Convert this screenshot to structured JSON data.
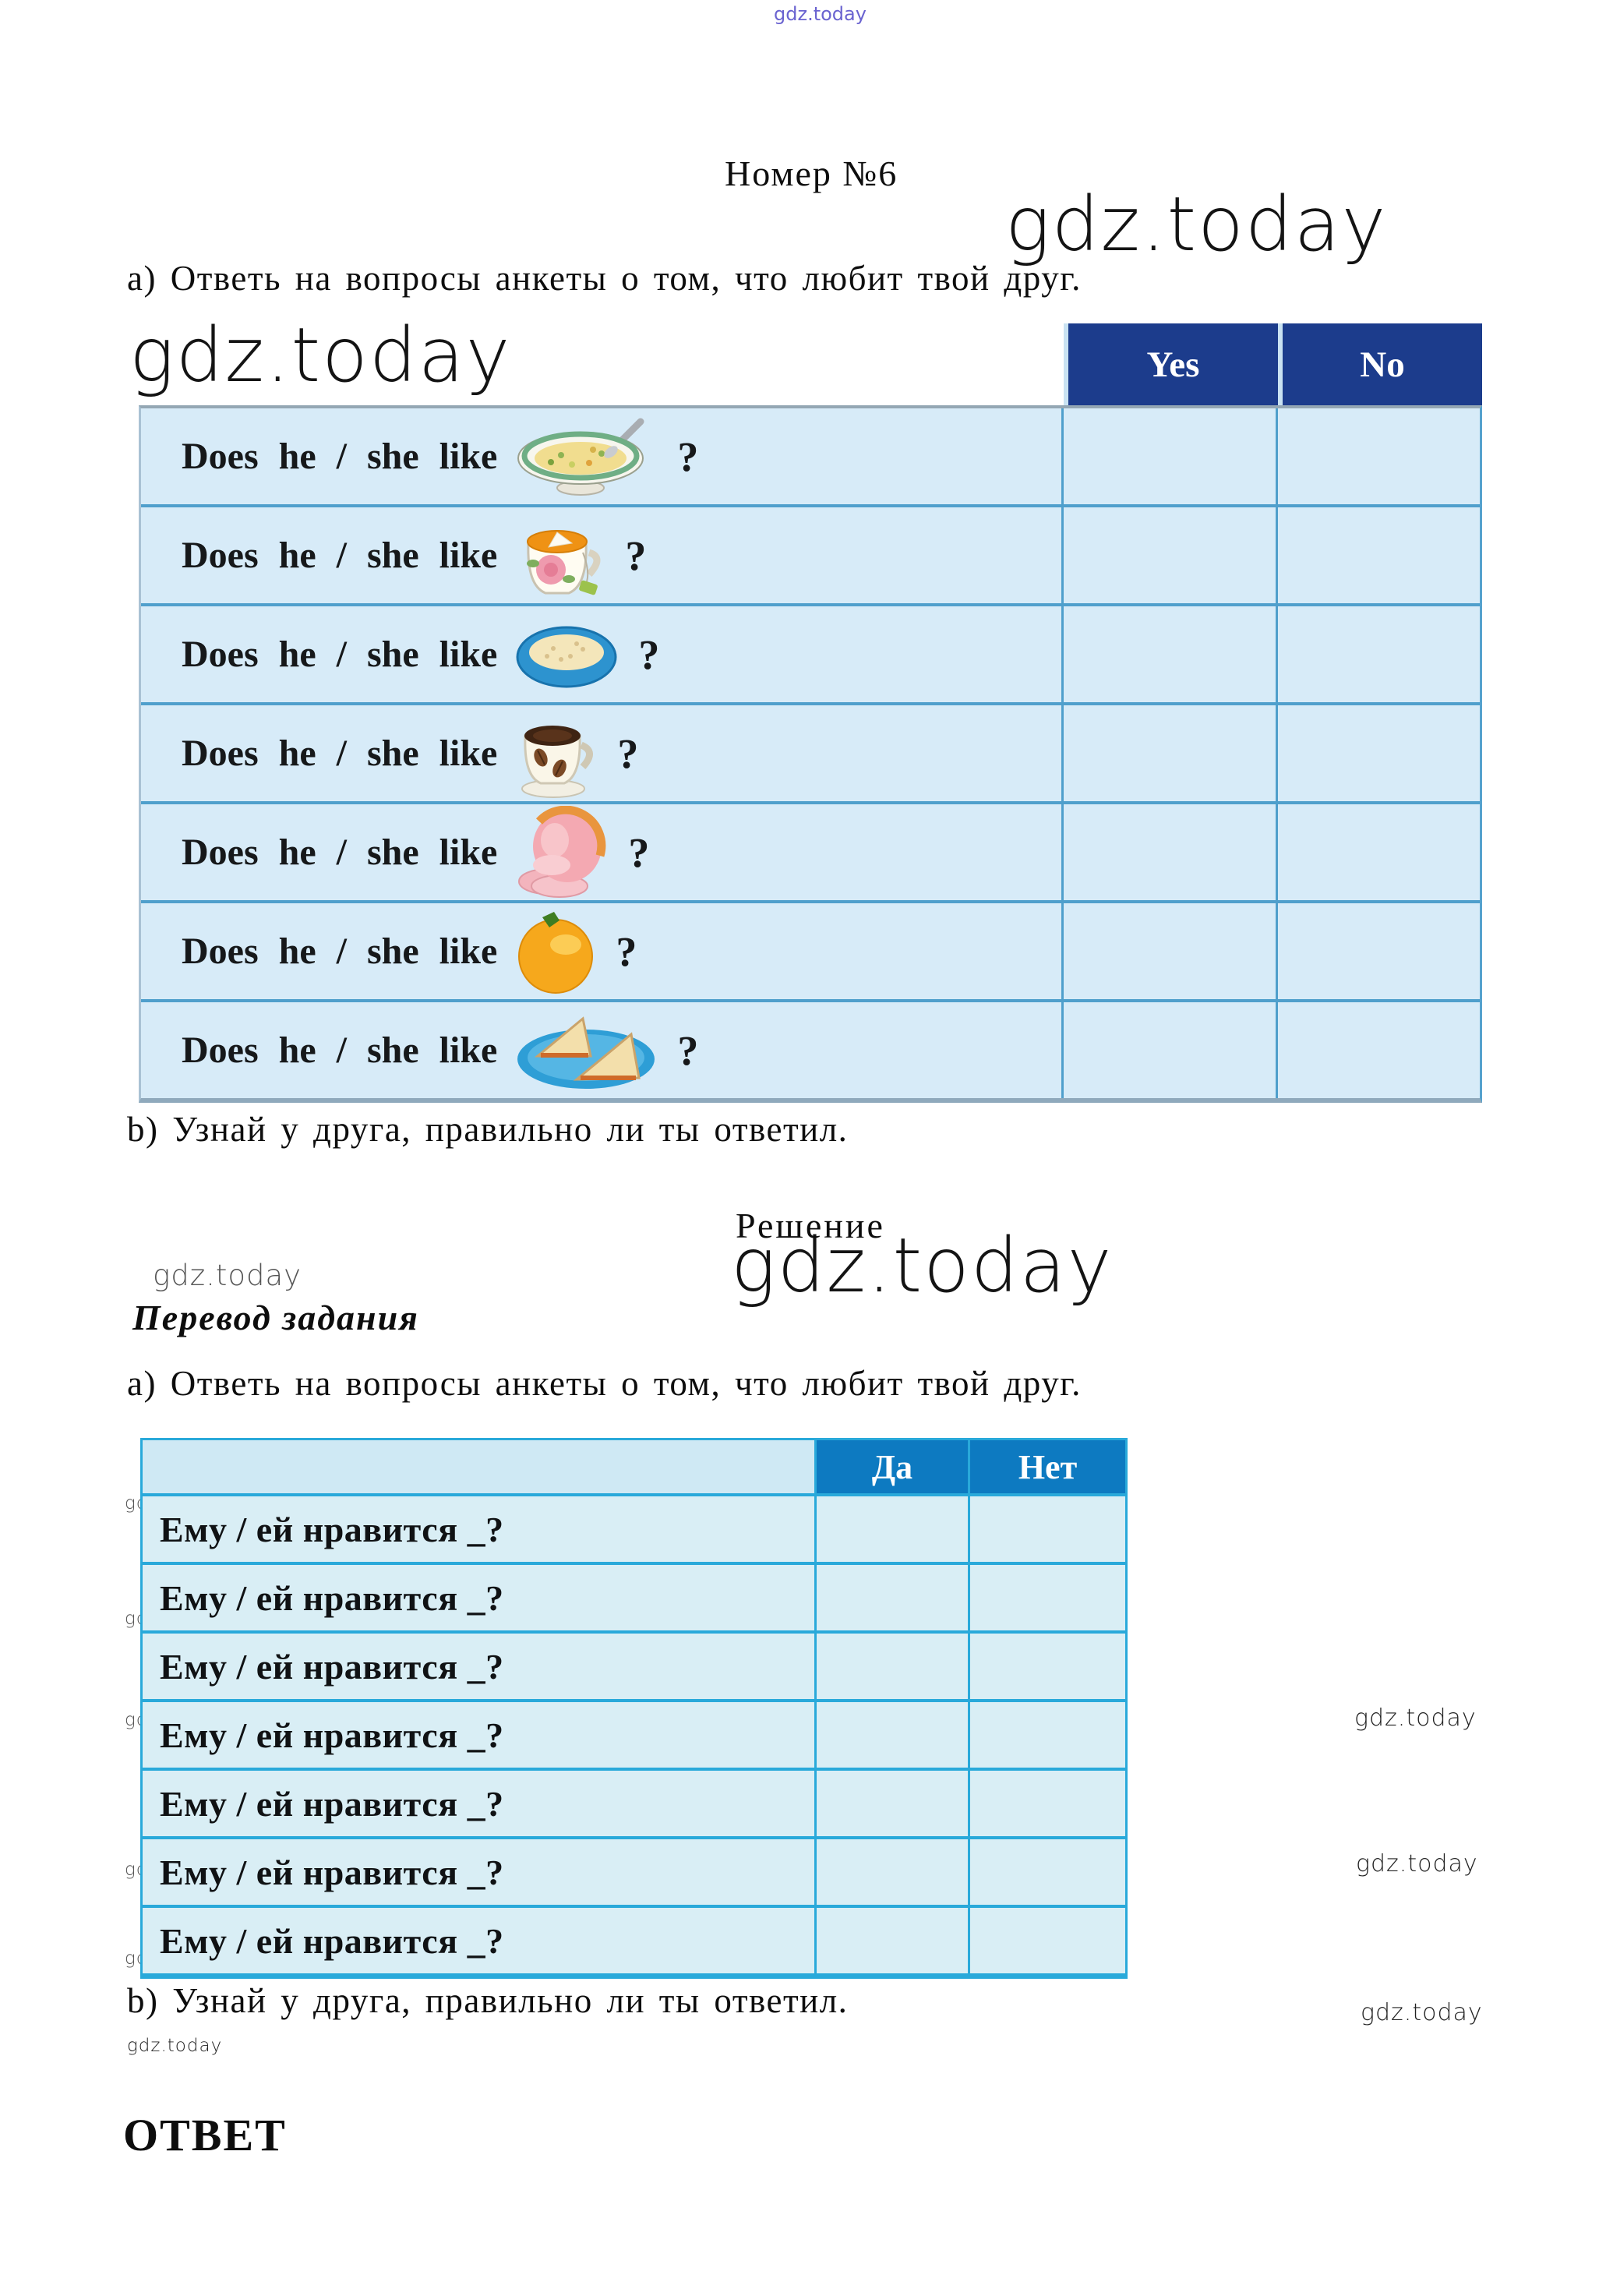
{
  "watermark": {
    "brand": "gdz.today"
  },
  "page": {
    "title": "Номер №6",
    "task_a": "а) Ответь на вопросы анкеты о том, что любит твой друг.",
    "task_b": "b) Узнай у друга, правильно ли ты ответил.",
    "solution_heading": "Решение",
    "translation_heading": "Перевод задания",
    "translation_task_a": "а) Ответь на вопросы анкеты о том, что любит твой друг.",
    "translation_task_b": "b) Узнай у друга, правильно ли ты ответил.",
    "answer_heading": "ОТВЕТ"
  },
  "table1": {
    "headers": [
      "Yes",
      "No"
    ],
    "question_prefix": "Does he / she like",
    "question_suffix": "?",
    "rows": [
      {
        "item": "soup-icon"
      },
      {
        "item": "tea-icon"
      },
      {
        "item": "rice-icon"
      },
      {
        "item": "coffee-icon"
      },
      {
        "item": "ham-icon"
      },
      {
        "item": "orange-icon"
      },
      {
        "item": "sandwich-icon"
      }
    ]
  },
  "table2": {
    "headers": [
      "Да",
      "Нет"
    ],
    "row_text": "Ему / ей нравится _?",
    "row_count": 7
  },
  "colors": {
    "table1_header_bg": "#1c3c8c",
    "table1_body_bg": "#d7ebf8",
    "table1_grid": "#4f9fcc",
    "table2_header_bg": "#0d7ac1",
    "table2_header_col1_bg": "#cfe9f4",
    "table2_body_bg": "#d9eef5",
    "table2_grid": "#29a9da",
    "watermark_top": "#6a63d0"
  }
}
